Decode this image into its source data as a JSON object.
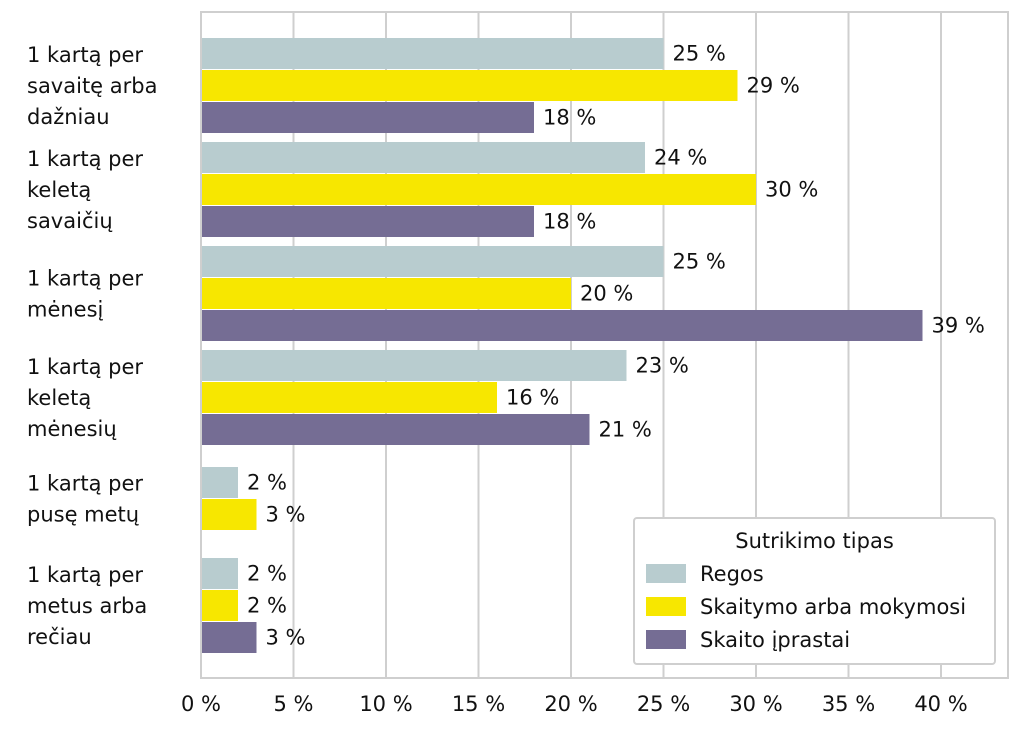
{
  "chart_data": {
    "type": "bar",
    "orientation": "horizontal",
    "categories": [
      [
        "1 kartą per",
        "savaitę arba",
        "dažniau"
      ],
      [
        "1 kartą per",
        "keletą",
        "savaičių"
      ],
      [
        "1 kartą per",
        "mėnesį"
      ],
      [
        "1 kartą per",
        "keletą",
        "mėnesių"
      ],
      [
        "1 kartą per",
        "pusę metų"
      ],
      [
        "1 kartą per",
        "metus arba",
        "rečiau"
      ]
    ],
    "series": [
      {
        "name": "Regos",
        "color": "#b8cccf",
        "values": [
          25,
          24,
          25,
          23,
          2,
          2
        ],
        "labels": [
          "25 %",
          "24 %",
          "25 %",
          "23 %",
          "2 %",
          "2 %"
        ]
      },
      {
        "name": "Skaitymo arba mokymosi",
        "color": "#f7e700",
        "values": [
          29,
          30,
          20,
          16,
          3,
          2
        ],
        "labels": [
          "29 %",
          "30 %",
          "20 %",
          "16 %",
          "3 %",
          "2 %"
        ]
      },
      {
        "name": "Skaito įprastai",
        "color": "#756d94",
        "values": [
          18,
          18,
          39,
          21,
          null,
          3
        ],
        "labels": [
          "18 %",
          "18 %",
          "39 %",
          "21 %",
          "",
          "3 %"
        ]
      }
    ],
    "xlim": [
      0,
      40
    ],
    "xticks": [
      "0 %",
      "5 %",
      "10 %",
      "15 %",
      "20 %",
      "25 %",
      "30 %",
      "35 %",
      "40 %"
    ],
    "grid": "vertical",
    "legend": {
      "title": "Sutrikimo tipas",
      "position": "bottom-right"
    },
    "title": "",
    "xlabel": "",
    "ylabel": ""
  }
}
